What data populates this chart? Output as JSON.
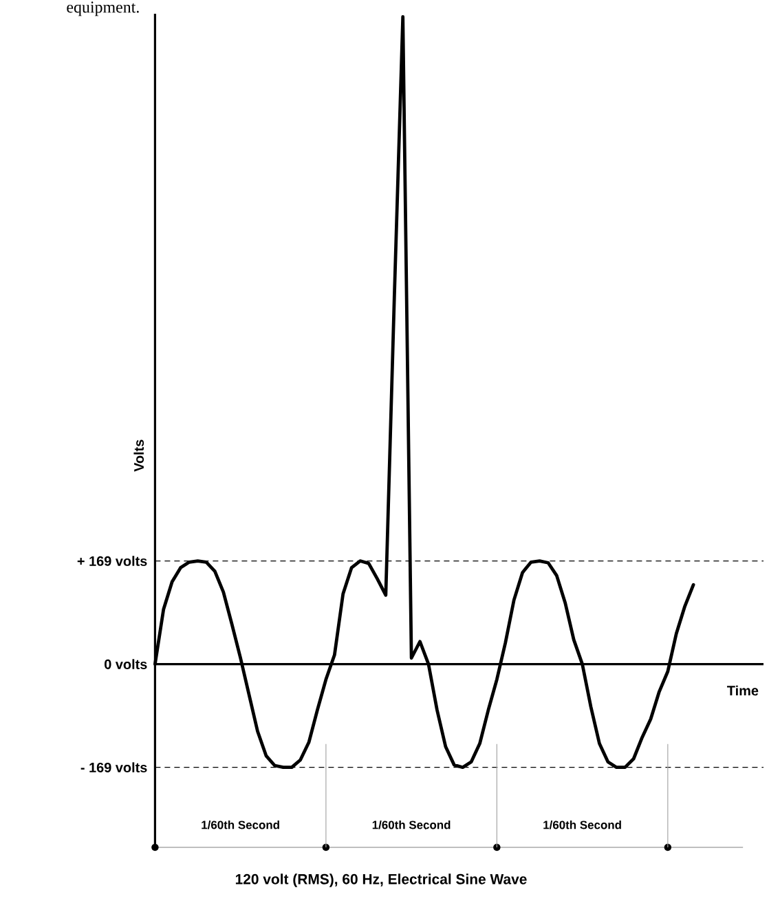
{
  "chart_data": {
    "type": "line",
    "subtitle": "equipment.",
    "title": "120 volt (RMS), 60 Hz, Electrical Sine Wave",
    "xlabel": "Time",
    "ylabel": "Volts",
    "annotations": [
      "1/60th Second",
      "1/60th Second",
      "1/60th Second"
    ],
    "ylim": [
      -300,
      1065
    ],
    "yticks": [
      {
        "value": -169,
        "label": "- 169 volts"
      },
      {
        "value": 0,
        "label": "0 volts"
      },
      {
        "value": 169,
        "label": "+ 169 volts"
      }
    ],
    "ref_lines": [
      {
        "axis": "y",
        "value": 169,
        "line_style": "dashed"
      },
      {
        "axis": "y",
        "value": -169,
        "line_style": "dashed"
      }
    ],
    "grid": false,
    "marker": "none",
    "line_style": "solid",
    "categories": [
      null,
      null,
      null,
      null,
      null,
      null,
      null,
      null,
      null,
      null,
      null,
      null,
      null,
      null,
      null,
      null,
      null,
      null,
      null,
      null,
      null,
      null,
      null,
      null,
      null,
      null,
      null,
      null,
      null,
      null,
      null,
      null,
      null,
      null,
      null,
      null,
      null,
      null,
      null,
      null,
      null,
      null,
      null,
      null,
      null,
      null,
      null,
      null,
      null,
      null,
      null,
      null,
      null,
      null,
      null,
      null,
      null,
      null,
      null,
      null,
      null,
      null,
      null,
      null
    ],
    "series": [
      {
        "color": "#000000",
        "values": [
          0,
          90,
          135,
          158,
          167,
          169,
          167,
          152,
          118,
          65,
          10,
          -50,
          -110,
          -150,
          -166,
          -169,
          -169,
          -157,
          -128,
          -75,
          -25,
          15,
          115,
          158,
          169,
          165,
          140,
          113,
          600,
          1060,
          10,
          37,
          0,
          -75,
          -135,
          -165,
          -169,
          -160,
          -130,
          -75,
          -25,
          35,
          105,
          150,
          167,
          169,
          166,
          145,
          100,
          40,
          0,
          -70,
          -130,
          -160,
          -169,
          -169,
          -155,
          -120,
          -90,
          -45,
          -12,
          50,
          95,
          130
        ]
      }
    ]
  }
}
